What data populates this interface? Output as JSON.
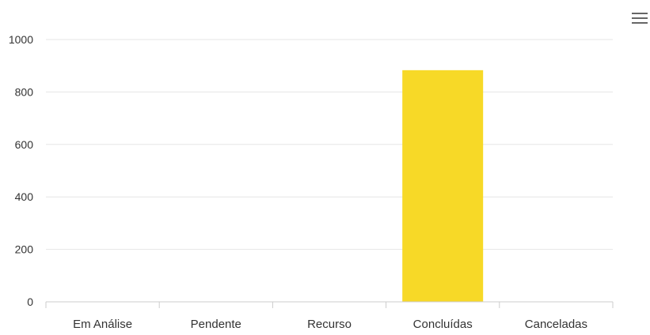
{
  "chart_data": {
    "type": "bar",
    "categories": [
      "Em Análise",
      "Pendente",
      "Recurso",
      "Concluídas",
      "Canceladas"
    ],
    "values": [
      0,
      0,
      0,
      883,
      0
    ],
    "ylim": [
      0,
      1000
    ],
    "yticks": [
      0,
      200,
      400,
      600,
      800,
      1000
    ],
    "grid": true,
    "legend": "none",
    "title": "",
    "xlabel": "",
    "ylabel": ""
  },
  "colors": {
    "bar": "#f7d927",
    "grid": "#e6e6e6",
    "axis": "#cccccc",
    "label": "#333333",
    "menu_icon": "#666666"
  },
  "toolbar": {
    "menu_icon": "hamburger-menu-icon"
  }
}
